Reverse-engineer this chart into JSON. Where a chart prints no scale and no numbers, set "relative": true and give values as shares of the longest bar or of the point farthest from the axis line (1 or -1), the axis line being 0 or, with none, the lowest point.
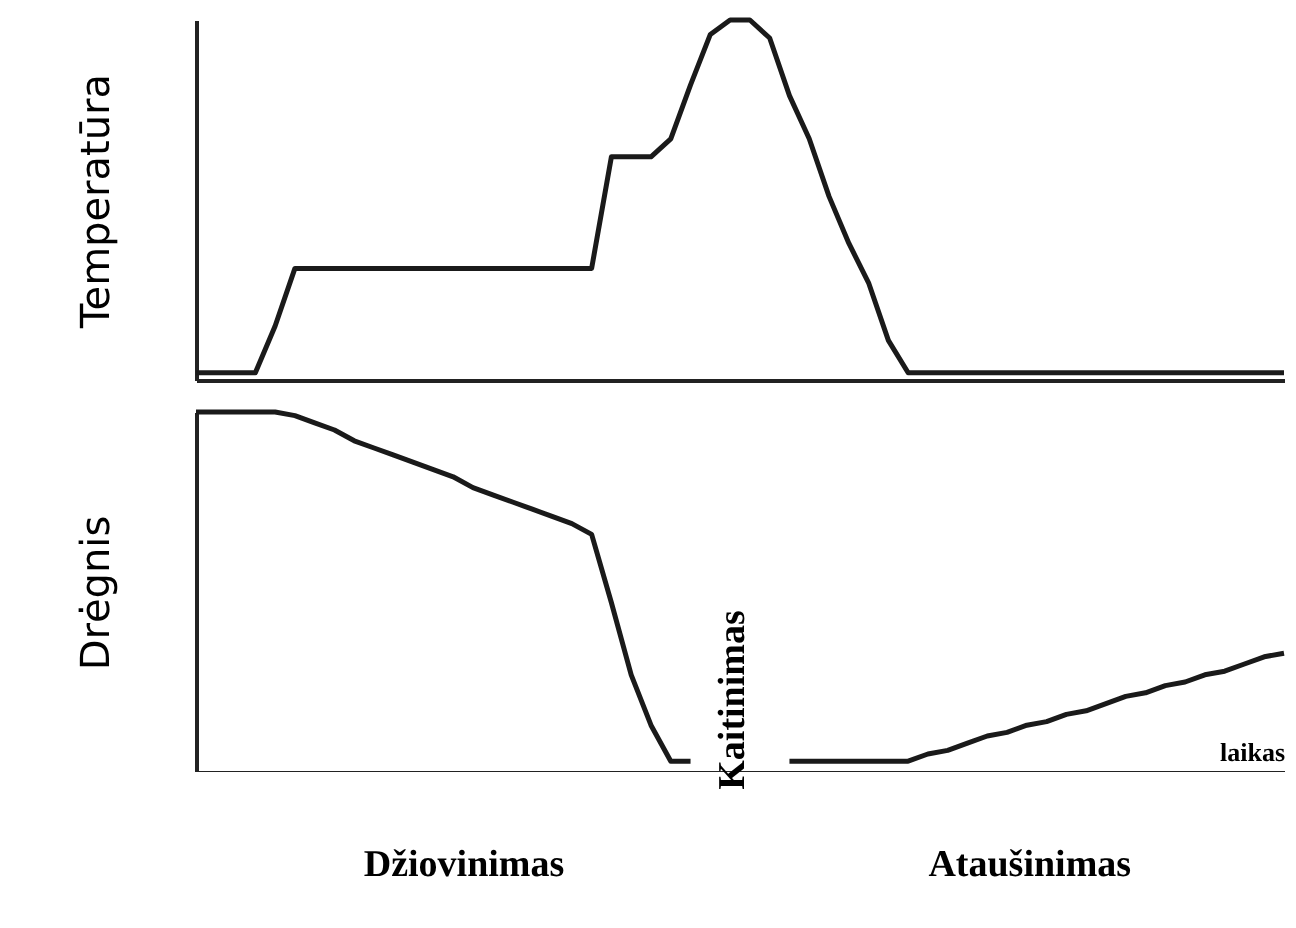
{
  "chart_data": [
    {
      "type": "line",
      "ylabel": "Temperatūra",
      "relative": true,
      "color": "#1a1a1a",
      "categories": [
        null,
        null,
        null,
        null,
        null,
        null,
        null,
        null,
        null,
        null,
        null,
        null,
        null,
        null,
        null,
        null,
        null,
        null,
        null,
        null,
        null,
        null,
        null,
        null,
        null,
        null,
        null,
        null,
        null,
        null,
        null,
        null,
        null,
        null,
        null,
        null,
        null,
        null,
        null,
        null,
        null,
        null,
        null,
        null,
        null,
        null,
        null,
        null,
        null,
        null,
        null,
        null,
        null,
        null,
        null,
        null
      ],
      "values": [
        0.02,
        0.02,
        0.02,
        0.02,
        0.15,
        0.31,
        0.31,
        0.31,
        0.31,
        0.31,
        0.31,
        0.31,
        0.31,
        0.31,
        0.31,
        0.31,
        0.31,
        0.31,
        0.31,
        0.31,
        0.31,
        0.62,
        0.62,
        0.62,
        0.67,
        0.82,
        0.96,
        1,
        1,
        0.95,
        0.79,
        0.67,
        0.51,
        0.38,
        0.27,
        0.11,
        0.02,
        0.02,
        0.02,
        0.02,
        0.02,
        0.02,
        0.02,
        0.02,
        0.02,
        0.02,
        0.02,
        0.02,
        0.02,
        0.02,
        0.02,
        0.02,
        0.02,
        0.02,
        0.02,
        0.02
      ]
    },
    {
      "type": "line",
      "ylabel": "Drėgnis",
      "xlabel": "laikas",
      "relative": true,
      "color": "#1a1a1a",
      "annotations": [
        "Džiovinimas",
        "Kaitinimas",
        "Ataušinimas"
      ],
      "categories": [
        null,
        null,
        null,
        null,
        null,
        null,
        null,
        null,
        null,
        null,
        null,
        null,
        null,
        null,
        null,
        null,
        null,
        null,
        null,
        null,
        null,
        null,
        null,
        null,
        null,
        null,
        null,
        null,
        null,
        null,
        null,
        null,
        null,
        null,
        null,
        null,
        null,
        null,
        null,
        null,
        null,
        null,
        null,
        null,
        null,
        null,
        null,
        null,
        null,
        null,
        null,
        null,
        null,
        null,
        null,
        null
      ],
      "values": [
        1,
        1,
        1,
        1,
        1,
        0.99,
        0.97,
        0.95,
        0.92,
        0.9,
        0.88,
        0.86,
        0.84,
        0.82,
        0.79,
        0.77,
        0.75,
        0.73,
        0.71,
        0.69,
        0.66,
        0.47,
        0.27,
        0.13,
        0.03,
        0.03,
        null,
        null,
        null,
        null,
        0.03,
        0.03,
        0.03,
        0.03,
        0.03,
        0.03,
        0.03,
        0.05,
        0.06,
        0.08,
        0.1,
        0.11,
        0.13,
        0.14,
        0.16,
        0.17,
        0.19,
        0.21,
        0.22,
        0.24,
        0.25,
        0.27,
        0.28,
        0.3,
        0.32,
        0.33
      ]
    }
  ]
}
